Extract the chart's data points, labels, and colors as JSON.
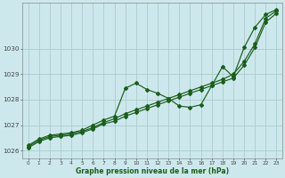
{
  "title": "Graphe pression niveau de la mer (hPa)",
  "bg_color": "#cde8ed",
  "grid_color": "#aacccc",
  "line_color": "#1a5e1a",
  "xlim": [
    -0.5,
    23.5
  ],
  "ylim": [
    1025.7,
    1031.8
  ],
  "yticks": [
    1026,
    1027,
    1028,
    1029,
    1030
  ],
  "xticks": [
    0,
    1,
    2,
    3,
    4,
    5,
    6,
    7,
    8,
    9,
    10,
    11,
    12,
    13,
    14,
    15,
    16,
    17,
    18,
    19,
    20,
    21,
    22,
    23
  ],
  "series1_x": [
    0,
    1,
    2,
    3,
    4,
    5,
    6,
    7,
    8,
    9,
    10,
    11,
    12,
    13,
    14,
    15,
    16,
    17,
    18,
    19,
    20,
    21,
    22,
    23
  ],
  "series1_y": [
    1026.15,
    1026.4,
    1026.55,
    1026.6,
    1026.65,
    1026.75,
    1026.9,
    1027.1,
    1027.25,
    1027.45,
    1027.6,
    1027.75,
    1027.9,
    1028.05,
    1028.2,
    1028.35,
    1028.5,
    1028.65,
    1028.8,
    1029.0,
    1029.5,
    1030.2,
    1031.2,
    1031.5
  ],
  "series2_x": [
    0,
    1,
    2,
    3,
    4,
    5,
    6,
    7,
    8,
    9,
    10,
    11,
    12,
    13,
    14,
    15,
    16,
    17,
    18,
    19,
    20,
    21,
    22,
    23
  ],
  "series2_y": [
    1026.2,
    1026.45,
    1026.6,
    1026.65,
    1026.7,
    1026.8,
    1027.0,
    1027.2,
    1027.35,
    1028.45,
    1028.65,
    1028.4,
    1028.25,
    1028.05,
    1027.75,
    1027.7,
    1027.8,
    1028.55,
    1029.3,
    1028.9,
    1030.05,
    1030.85,
    1031.35,
    1031.55
  ],
  "series3_x": [
    0,
    1,
    2,
    3,
    4,
    5,
    6,
    7,
    8,
    9,
    10,
    11,
    12,
    13,
    14,
    15,
    16,
    17,
    18,
    19,
    20,
    21,
    22,
    23
  ],
  "series3_y": [
    1026.1,
    1026.35,
    1026.5,
    1026.55,
    1026.6,
    1026.7,
    1026.85,
    1027.05,
    1027.15,
    1027.35,
    1027.5,
    1027.65,
    1027.8,
    1027.95,
    1028.1,
    1028.25,
    1028.4,
    1028.55,
    1028.7,
    1028.85,
    1029.35,
    1030.05,
    1031.05,
    1031.4
  ]
}
